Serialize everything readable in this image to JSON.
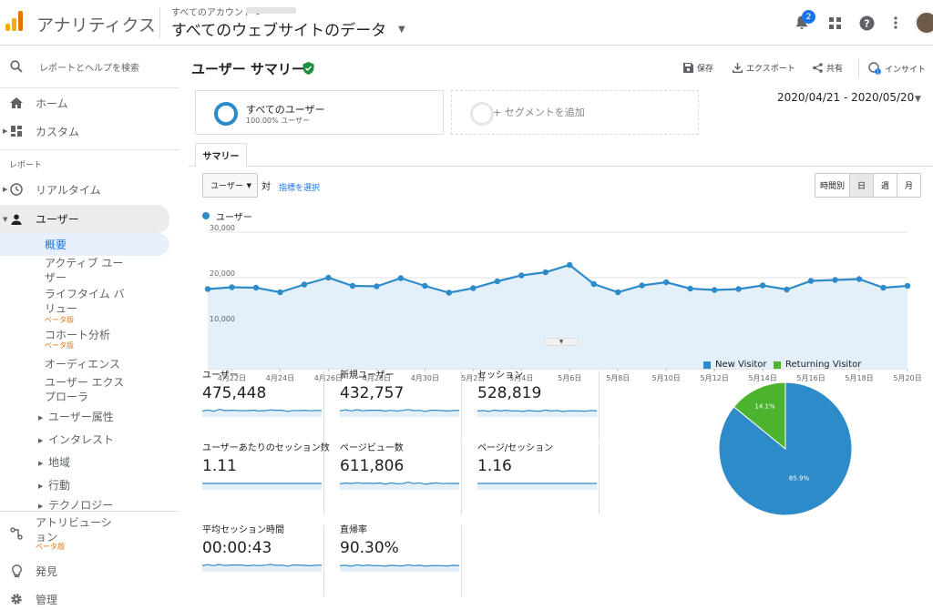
{
  "header": {
    "app_title": "アナリティクス",
    "account_small": "すべてのアカウント >",
    "property_view": "すべてのウェブサイトのデータ",
    "notification_count": "2"
  },
  "sidebar": {
    "search_placeholder": "レポートとヘルプを検索",
    "home": "ホーム",
    "custom": "カスタム",
    "reports_heading": "レポート",
    "realtime": "リアルタイム",
    "audience": "ユーザー",
    "audience_items": {
      "overview": "概要",
      "active_users": "アクティブ ユーザー",
      "lifetime_value": "ライフタイム バリュー",
      "cohort": "コホート分析",
      "audiences": "オーディエンス",
      "user_explorer": "ユーザー エクスプローラ",
      "demographics": "ユーザー属性",
      "interests": "インタレスト",
      "geo": "地域",
      "behavior": "行動",
      "technology": "テクノロジー"
    },
    "beta_label": "ベータ版",
    "attribution": "アトリビューション",
    "discover": "発見",
    "admin": "管理"
  },
  "page": {
    "title": "ユーザー サマリー",
    "actions": {
      "save": "保存",
      "export": "エクスポート",
      "share": "共有",
      "insights": "インサイト"
    },
    "segment_name": "すべてのユーザー",
    "segment_pct": "100.00% ユーザー",
    "add_segment": "+ セグメントを追加",
    "date_range": "2020/04/21 - 2020/05/20",
    "tab_summary": "サマリー",
    "metric_dropdown": "ユーザー",
    "vs": "対",
    "select_metric": "指標を選択",
    "granularity": [
      "時間別",
      "日",
      "週",
      "月"
    ]
  },
  "chart_data": {
    "type": "line",
    "series_name": "ユーザー",
    "y_ticks": [
      "30,000",
      "20,000",
      "10,000"
    ],
    "ylim": [
      0,
      30000
    ],
    "x_tick_labels": [
      "4月22日",
      "4月24日",
      "4月26日",
      "4月28日",
      "4月30日",
      "5月2日",
      "5月4日",
      "5月6日",
      "5月8日",
      "5月10日",
      "5月12日",
      "5月14日",
      "5月16日",
      "5月18日",
      "5月20日"
    ],
    "x": [
      "4/21",
      "4/22",
      "4/23",
      "4/24",
      "4/25",
      "4/26",
      "4/27",
      "4/28",
      "4/29",
      "4/30",
      "5/1",
      "5/2",
      "5/3",
      "5/4",
      "5/5",
      "5/6",
      "5/7",
      "5/8",
      "5/9",
      "5/10",
      "5/11",
      "5/12",
      "5/13",
      "5/14",
      "5/15",
      "5/16",
      "5/17",
      "5/18",
      "5/19",
      "5/20"
    ],
    "values": [
      17500,
      17900,
      17800,
      16800,
      18500,
      20000,
      18200,
      18100,
      19900,
      18200,
      16700,
      17700,
      19200,
      20500,
      21200,
      22800,
      18600,
      16800,
      18300,
      19000,
      17600,
      17300,
      17500,
      18300,
      17400,
      19300,
      19500,
      19700,
      17800,
      18200
    ]
  },
  "metrics": [
    {
      "label": "ユーザー",
      "value": "475,448"
    },
    {
      "label": "新規ユーザー",
      "value": "432,757"
    },
    {
      "label": "セッション",
      "value": "528,819"
    },
    {
      "label": "ユーザーあたりのセッション数",
      "value": "1.11"
    },
    {
      "label": "ページビュー数",
      "value": "611,806"
    },
    {
      "label": "ページ/セッション",
      "value": "1.16"
    },
    {
      "label": "平均セッション時間",
      "value": "00:00:43"
    },
    {
      "label": "直帰率",
      "value": "90.30%"
    }
  ],
  "pie": {
    "slices": [
      {
        "name": "New Visitor",
        "value": 85.9,
        "label": "85.9%",
        "color": "#2e8bc9"
      },
      {
        "name": "Returning Visitor",
        "value": 14.1,
        "label": "14.1%",
        "color": "#4cb32e"
      }
    ]
  },
  "colors": {
    "accent": "#1a73e8",
    "series": "#2e8bc9",
    "area": "#e3f0fa",
    "active_nav": "#e8f0fe"
  }
}
